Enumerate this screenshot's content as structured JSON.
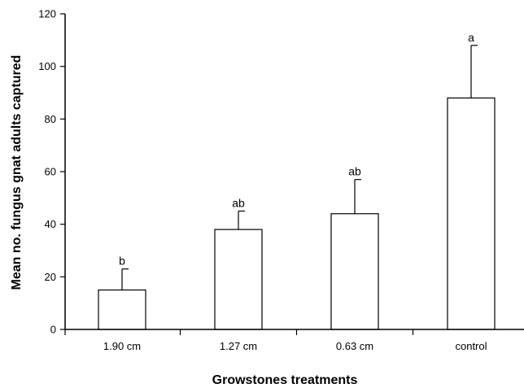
{
  "chart_data": {
    "type": "bar",
    "title": "",
    "xlabel": "Growstones treatments",
    "ylabel": "Mean no. fungus gnat adults captured",
    "categories": [
      "1.90 cm",
      "1.27 cm",
      "0.63 cm",
      "control"
    ],
    "values": [
      15,
      38,
      44,
      88
    ],
    "error_upper": [
      8,
      7,
      13,
      20
    ],
    "significance_letters": [
      "b",
      "ab",
      "ab",
      "a"
    ],
    "ylim": [
      0,
      120
    ],
    "yticks": [
      "0",
      "20",
      "40",
      "60",
      "80",
      "100",
      "120"
    ],
    "grid": false,
    "legend": "none",
    "colors": {
      "bar_fill": "#ffffff",
      "bar_stroke": "#000000",
      "axis": "#000000"
    }
  }
}
